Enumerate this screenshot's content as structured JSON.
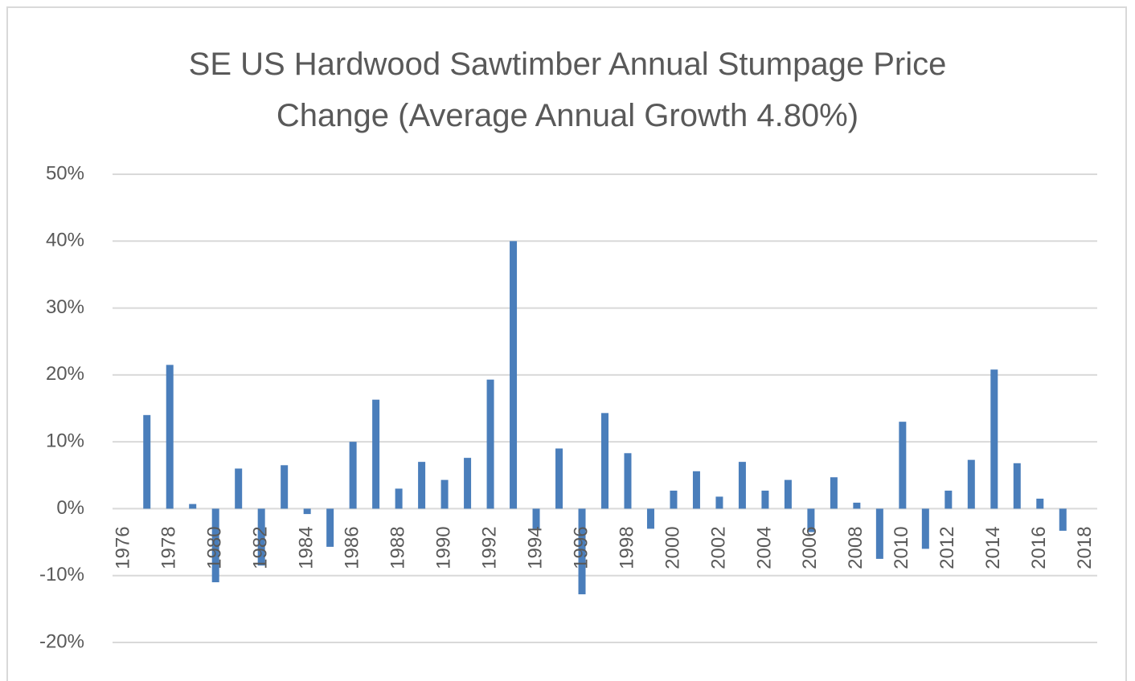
{
  "chart_data": {
    "type": "bar",
    "title": "SE US Hardwood Sawtimber Annual Stumpage Price Change (Average Annual Growth 4.80%)",
    "categories": [
      "1976",
      null,
      "1978",
      null,
      "1980",
      null,
      "1982",
      null,
      "1984",
      null,
      "1986",
      null,
      "1988",
      null,
      "1990",
      null,
      "1992",
      null,
      "1994",
      null,
      "1996",
      null,
      "1998",
      null,
      "2000",
      null,
      "2002",
      null,
      "2004",
      null,
      "2006",
      null,
      "2008",
      null,
      "2010",
      null,
      "2012",
      null,
      "2014",
      null,
      "2016",
      null,
      "2018"
    ],
    "values": [
      0,
      14,
      21.5,
      0.7,
      -11,
      6,
      -8.5,
      6.5,
      -0.8,
      -5.7,
      10,
      16.3,
      3,
      7,
      4.3,
      7.6,
      19.3,
      40,
      -3,
      9,
      -12.8,
      14.3,
      8.3,
      -3,
      2.7,
      5.6,
      1.8,
      7,
      2.7,
      4.3,
      -3.5,
      4.7,
      0.9,
      -7.5,
      13,
      -6,
      2.7,
      7.3,
      20.8,
      6.8,
      1.5,
      -3.3,
      0
    ],
    "color": "#4a7ebb",
    "ylim": [
      -20,
      50
    ],
    "yticks": [
      {
        "value": -20,
        "label": "-20%"
      },
      {
        "value": -10,
        "label": "-10%"
      },
      {
        "value": 0,
        "label": "0%"
      },
      {
        "value": 10,
        "label": "10%"
      },
      {
        "value": 20,
        "label": "20%"
      },
      {
        "value": 30,
        "label": "30%"
      },
      {
        "value": 40,
        "label": "40%"
      },
      {
        "value": 50,
        "label": "50%"
      }
    ],
    "grid": true
  }
}
